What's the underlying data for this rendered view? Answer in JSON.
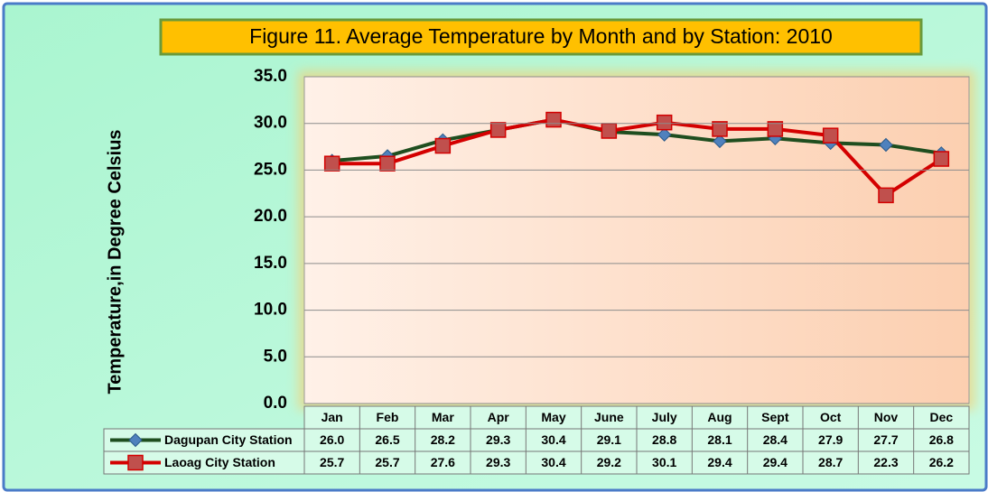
{
  "chart_data": {
    "type": "line",
    "title": "Figure 11. Average Temperature by Month and by Station: 2010",
    "y_label": "Temperature,in Degree Celsius",
    "categories": [
      "Jan",
      "Feb",
      "Mar",
      "Apr",
      "May",
      "June",
      "July",
      "Aug",
      "Sept",
      "Oct",
      "Nov",
      "Dec"
    ],
    "series": [
      {
        "name": "Dagupan City Station",
        "color": "#1f4e1f",
        "marker": "diamond",
        "marker_color": "#4f81bd",
        "values": [
          26.0,
          26.5,
          28.2,
          29.3,
          30.4,
          29.1,
          28.8,
          28.1,
          28.4,
          27.9,
          27.7,
          26.8
        ],
        "value_labels": [
          "26.0",
          "26.5",
          "28.2",
          "29.3",
          "30.4",
          "29.1",
          "28.8",
          "28.1",
          "28.4",
          "27.9",
          "27.7",
          "26.8"
        ]
      },
      {
        "name": "Laoag City Station",
        "color": "#d40000",
        "marker": "square",
        "marker_color": "#c0504d",
        "values": [
          25.7,
          25.7,
          27.6,
          29.3,
          30.4,
          29.2,
          30.1,
          29.4,
          29.4,
          28.7,
          22.3,
          26.2
        ],
        "value_labels": [
          "25.7",
          "25.7",
          "27.6",
          "29.3",
          "30.4",
          "29.2",
          "30.1",
          "29.4",
          "29.4",
          "28.7",
          "22.3",
          "26.2"
        ]
      }
    ],
    "ylim": [
      0,
      35
    ],
    "yticks": [
      {
        "value": 0,
        "label": "0.0"
      },
      {
        "value": 5,
        "label": "5.0"
      },
      {
        "value": 10,
        "label": "10.0"
      },
      {
        "value": 15,
        "label": "15.0"
      },
      {
        "value": 20,
        "label": "20.0"
      },
      {
        "value": 25,
        "label": "25.0"
      },
      {
        "value": 30,
        "label": "30.0"
      },
      {
        "value": 35,
        "label": "35.0"
      }
    ],
    "grid": true
  }
}
